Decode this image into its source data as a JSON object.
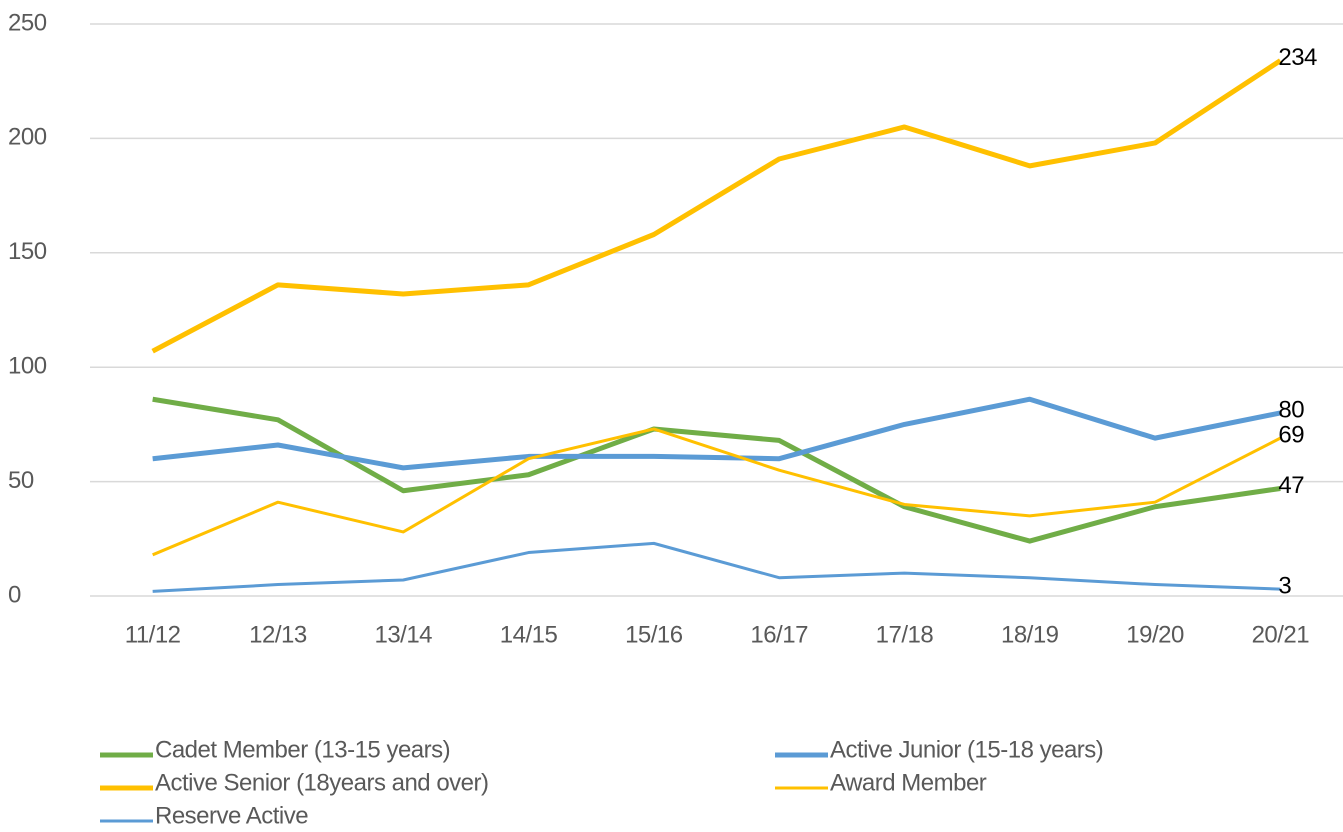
{
  "chart_data": {
    "type": "line",
    "categories": [
      "11/12",
      "12/13",
      "13/14",
      "14/15",
      "15/16",
      "16/17",
      "17/18",
      "18/19",
      "19/20",
      "20/21"
    ],
    "series": [
      {
        "name": "Cadet Member (13-15 years)",
        "color": "#70ad47",
        "line_width": 5,
        "values": [
          86,
          77,
          46,
          53,
          73,
          68,
          39,
          24,
          39,
          47
        ]
      },
      {
        "name": "Active Junior (15-18 years)",
        "color": "#5b9bd5",
        "line_width": 5,
        "values": [
          60,
          66,
          56,
          61,
          61,
          60,
          75,
          86,
          69,
          80
        ]
      },
      {
        "name": "Active Senior (18years and over)",
        "color": "#ffc000",
        "line_width": 5,
        "values": [
          107,
          136,
          132,
          136,
          158,
          191,
          205,
          188,
          198,
          234
        ]
      },
      {
        "name": "Award Member",
        "color": "#ffc000",
        "line_width": 3,
        "values": [
          18,
          41,
          28,
          60,
          73,
          55,
          40,
          35,
          41,
          69
        ]
      },
      {
        "name": "Reserve Active",
        "color": "#5b9bd5",
        "line_width": 3,
        "values": [
          2,
          5,
          7,
          19,
          23,
          8,
          10,
          8,
          5,
          3
        ]
      }
    ],
    "ylim": [
      0,
      250
    ],
    "yticks": [
      0,
      50,
      100,
      150,
      200,
      250
    ],
    "grid": true
  }
}
